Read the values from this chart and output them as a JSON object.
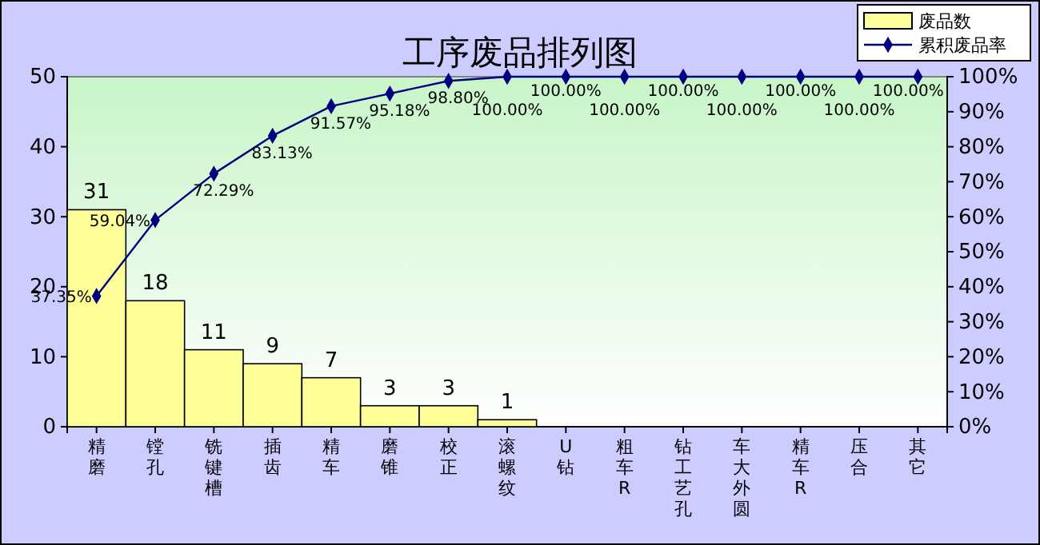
{
  "chart_data": {
    "type": "bar",
    "title": "工序废品排列图",
    "categories": [
      "精磨",
      "镗孔",
      "铣键槽",
      "插齿",
      "精车",
      "磨锥",
      "校正",
      "滚螺纹",
      "U钻",
      "粗车R",
      "钻工艺孔",
      "车大外圆",
      "精车R",
      "压合",
      "其它"
    ],
    "series": [
      {
        "name": "废品数",
        "color": "#ffff99",
        "values": [
          31,
          18,
          11,
          9,
          7,
          3,
          3,
          1,
          0,
          0,
          0,
          0,
          0,
          0,
          0
        ],
        "value_labels": [
          "31",
          "18",
          "11",
          "9",
          "7",
          "3",
          "3",
          "1",
          null,
          null,
          null,
          null,
          null,
          null,
          null
        ]
      },
      {
        "name": "累积废品率",
        "type": "line",
        "axis": "y2",
        "color": "#000080",
        "marker": "diamond",
        "values": [
          37.35,
          59.04,
          72.29,
          83.13,
          91.57,
          95.18,
          98.8,
          100,
          100,
          100,
          100,
          100,
          100,
          100,
          100
        ],
        "value_labels": [
          "37.35%",
          "59.04%",
          "72.29%",
          "83.13%",
          "91.57%",
          "95.18%",
          "98.80%",
          "100.00%",
          "100.00%",
          "100.00%",
          "100.00%",
          "100.00%",
          "100.00%",
          "100.00%",
          "100.00%"
        ]
      }
    ],
    "ylim": [
      0,
      50
    ],
    "yticks": [
      0,
      10,
      20,
      30,
      40,
      50
    ],
    "y2lim": [
      0,
      100
    ],
    "y2ticks": [
      {
        "value": 0,
        "label": "0%"
      },
      {
        "value": 10,
        "label": "10%"
      },
      {
        "value": 20,
        "label": "20%"
      },
      {
        "value": 30,
        "label": "30%"
      },
      {
        "value": 40,
        "label": "40%"
      },
      {
        "value": 50,
        "label": "50%"
      },
      {
        "value": 60,
        "label": "60%"
      },
      {
        "value": 70,
        "label": "70%"
      },
      {
        "value": 80,
        "label": "80%"
      },
      {
        "value": 90,
        "label": "90%"
      },
      {
        "value": 100,
        "label": "100%"
      }
    ],
    "legend": "top right",
    "grid": false
  }
}
